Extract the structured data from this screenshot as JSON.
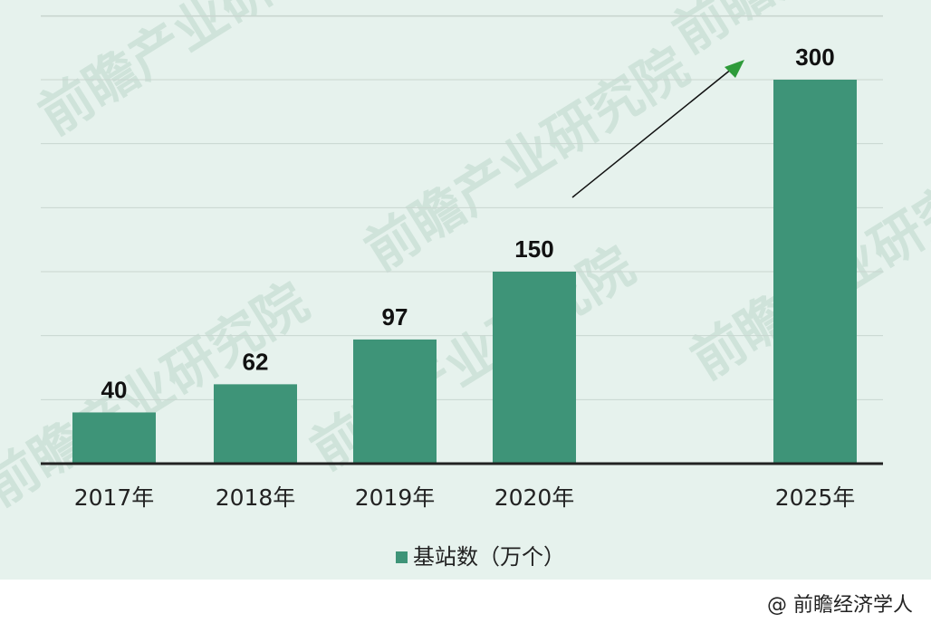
{
  "chart_data": {
    "type": "bar",
    "categories": [
      "2017年",
      "2018年",
      "2019年",
      "2020年",
      "2025年"
    ],
    "series": [
      {
        "name": "基站数（万个）",
        "values": [
          40,
          62,
          97,
          150,
          300
        ]
      }
    ],
    "ylim": [
      0,
      300
    ],
    "grid": true,
    "legend_position": "bottom-center",
    "bar_color": "#3e9478",
    "annotation": "trend arrow from 2020年 to 2025年"
  },
  "watermark_text": "前瞻产业研究院",
  "footer": {
    "credit": "@ 前瞻经济学人"
  },
  "colors": {
    "background": "#e6f2ed",
    "bar": "#3e9478",
    "arrow_head": "#2e9b3a"
  }
}
